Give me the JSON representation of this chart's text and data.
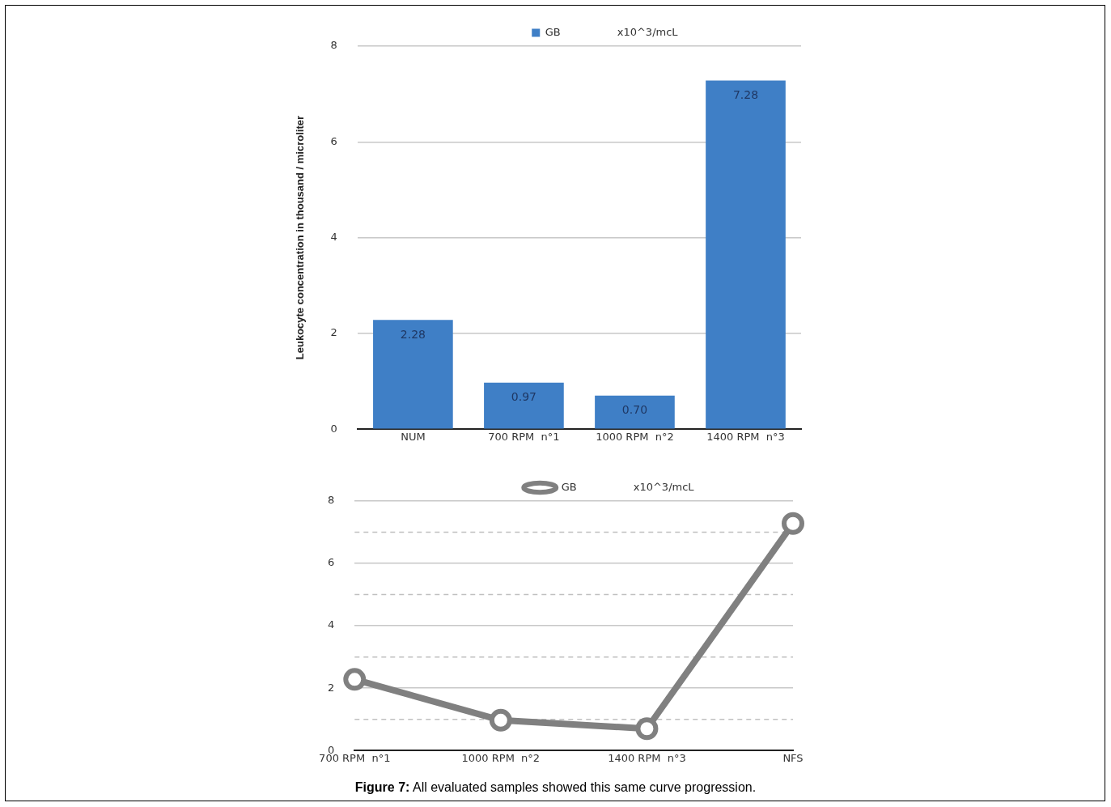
{
  "chart_data": [
    {
      "type": "bar",
      "ylabel": "Leukocyte concentration in thousand / microliter",
      "categories": [
        "NUM",
        "700 RPM  n°1",
        "1000 RPM  n°2",
        "1400 RPM  n°3"
      ],
      "series": [
        {
          "name": "GB",
          "color": "#3f7fc6",
          "values": [
            2.28,
            0.97,
            0.7,
            7.28
          ]
        }
      ],
      "ylim": [
        0,
        8
      ],
      "yticks": [
        0,
        2,
        4,
        6,
        8
      ],
      "grid": "y",
      "legend": "top",
      "value_labels": [
        "2.28",
        "0.97",
        "0.70",
        "7.28"
      ],
      "annotations": [
        "x10^3/mcL"
      ]
    },
    {
      "type": "line",
      "categories": [
        "700 RPM  n°1",
        "1000 RPM  n°2",
        "1400 RPM  n°3",
        "NFS"
      ],
      "series": [
        {
          "name": "GB",
          "color": "#808080",
          "values": [
            2.28,
            0.97,
            0.7,
            7.28
          ]
        }
      ],
      "ylim": [
        0,
        8
      ],
      "yticks": [
        0,
        {
          "value": 1,
          "label": null
        },
        2,
        {
          "value": 3,
          "label": null
        },
        4,
        {
          "value": 5,
          "label": null
        },
        6,
        {
          "value": 7,
          "label": null
        },
        8
      ],
      "grid": "y",
      "legend": "top",
      "marker": "circle",
      "annotations": [
        "x10^3/mcL",
        "Figure 7: All evaluated samples showed this same curve progression."
      ]
    }
  ]
}
